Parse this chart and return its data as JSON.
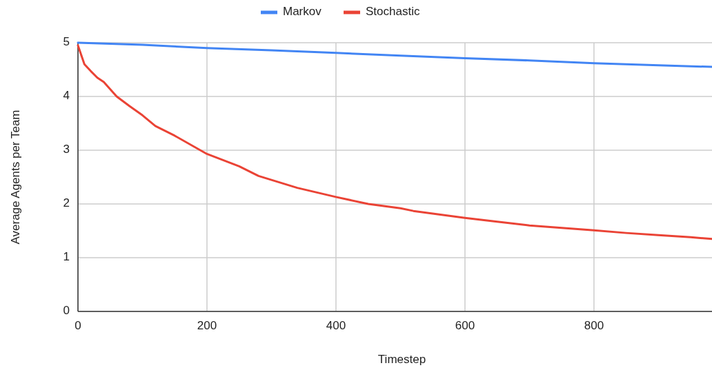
{
  "chart_data": {
    "type": "line",
    "xlabel": "Timestep",
    "ylabel": "Average Agents per Team",
    "xlim": [
      0,
      983
    ],
    "xticks": [
      0,
      200,
      400,
      600,
      800
    ],
    "ylim": [
      0,
      5
    ],
    "yticks": [
      0,
      1,
      2,
      3,
      4,
      5
    ],
    "grid": true,
    "legend": "top",
    "line_style": "solid",
    "marker": "none",
    "series": [
      {
        "name": "Markov",
        "color": "#4285f4",
        "x": [
          0,
          100,
          200,
          300,
          400,
          500,
          600,
          700,
          800,
          900,
          983
        ],
        "values": [
          5,
          4.96,
          4.9,
          4.86,
          4.81,
          4.76,
          4.71,
          4.67,
          4.62,
          4.58,
          4.55
        ]
      },
      {
        "name": "Stochastic",
        "color": "#ea4335",
        "x": [
          0,
          10,
          20,
          30,
          40,
          60,
          80,
          100,
          120,
          150,
          200,
          250,
          280,
          340,
          400,
          450,
          500,
          520,
          600,
          650,
          700,
          800,
          850,
          900,
          950,
          983
        ],
        "values": [
          4.95,
          4.6,
          4.47,
          4.35,
          4.27,
          4.0,
          3.82,
          3.65,
          3.45,
          3.27,
          2.93,
          2.7,
          2.52,
          2.3,
          2.13,
          2.0,
          1.92,
          1.87,
          1.74,
          1.67,
          1.6,
          1.51,
          1.46,
          1.42,
          1.38,
          1.35
        ]
      }
    ]
  }
}
